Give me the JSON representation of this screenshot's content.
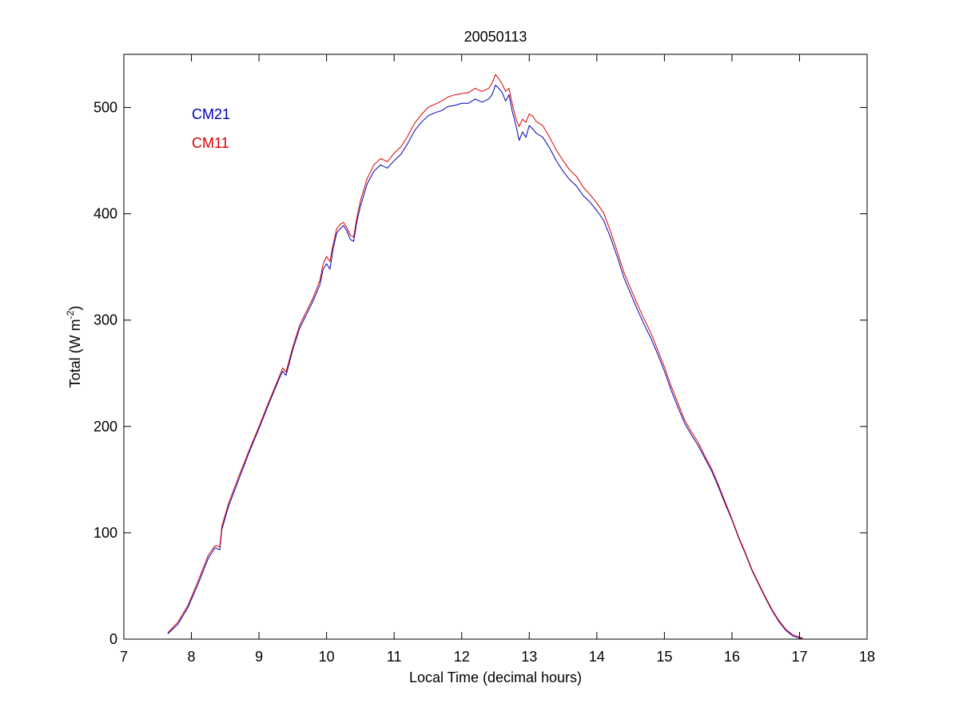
{
  "chart_data": {
    "type": "line",
    "title": "20050113",
    "xlabel": "Local Time (decimal hours)",
    "ylabel": "Total (W m",
    "ylabel_sup": "-2",
    "ylabel_end": ")",
    "xlim": [
      7,
      18
    ],
    "ylim": [
      0,
      550
    ],
    "xticks": [
      7,
      8,
      9,
      10,
      11,
      12,
      13,
      14,
      15,
      16,
      17,
      18
    ],
    "yticks": [
      0,
      100,
      200,
      300,
      400,
      500
    ],
    "grid": false,
    "legend_position": "top-left",
    "series": [
      {
        "name": "CM21",
        "color": "#0000b4",
        "x": [
          7.65,
          7.8,
          7.95,
          8.1,
          8.25,
          8.35,
          8.42,
          8.45,
          8.55,
          8.7,
          8.85,
          9.0,
          9.15,
          9.3,
          9.35,
          9.4,
          9.5,
          9.6,
          9.7,
          9.8,
          9.9,
          9.95,
          10.0,
          10.05,
          10.08,
          10.1,
          10.15,
          10.2,
          10.25,
          10.3,
          10.35,
          10.4,
          10.45,
          10.5,
          10.6,
          10.7,
          10.8,
          10.9,
          11.0,
          11.1,
          11.2,
          11.3,
          11.4,
          11.5,
          11.6,
          11.7,
          11.8,
          11.9,
          12.0,
          12.1,
          12.2,
          12.3,
          12.4,
          12.45,
          12.5,
          12.55,
          12.6,
          12.65,
          12.7,
          12.75,
          12.8,
          12.85,
          12.9,
          12.95,
          13.0,
          13.05,
          13.1,
          13.2,
          13.3,
          13.4,
          13.5,
          13.6,
          13.7,
          13.8,
          13.9,
          14.0,
          14.1,
          14.2,
          14.3,
          14.4,
          14.5,
          14.6,
          14.7,
          14.8,
          14.9,
          15.0,
          15.1,
          15.2,
          15.3,
          15.4,
          15.5,
          15.6,
          15.7,
          15.8,
          15.9,
          16.0,
          16.1,
          16.2,
          16.3,
          16.4,
          16.5,
          16.6,
          16.7,
          16.8,
          16.9,
          17.0,
          17.05
        ],
        "y": [
          5,
          14,
          30,
          52,
          76,
          86,
          84,
          103,
          125,
          150,
          175,
          198,
          222,
          245,
          252,
          248,
          272,
          292,
          305,
          318,
          333,
          348,
          353,
          348,
          360,
          368,
          382,
          386,
          389,
          384,
          376,
          374,
          393,
          407,
          428,
          440,
          446,
          443,
          450,
          456,
          466,
          478,
          486,
          492,
          495,
          497,
          501,
          502,
          504,
          504,
          508,
          505,
          508,
          512,
          521,
          518,
          514,
          506,
          512,
          496,
          484,
          469,
          477,
          472,
          483,
          480,
          476,
          472,
          462,
          450,
          440,
          432,
          426,
          417,
          411,
          403,
          394,
          378,
          360,
          340,
          325,
          310,
          296,
          283,
          268,
          252,
          234,
          218,
          203,
          192,
          182,
          170,
          158,
          143,
          127,
          112,
          95,
          80,
          64,
          51,
          38,
          26,
          16,
          8,
          3,
          1,
          0
        ]
      },
      {
        "name": "CM11",
        "color": "#dc0000",
        "x": [
          7.65,
          7.8,
          7.95,
          8.1,
          8.25,
          8.35,
          8.42,
          8.45,
          8.55,
          8.7,
          8.85,
          9.0,
          9.15,
          9.3,
          9.35,
          9.4,
          9.5,
          9.6,
          9.7,
          9.8,
          9.9,
          9.95,
          10.0,
          10.05,
          10.08,
          10.1,
          10.15,
          10.2,
          10.25,
          10.3,
          10.35,
          10.4,
          10.45,
          10.5,
          10.6,
          10.7,
          10.8,
          10.9,
          11.0,
          11.1,
          11.2,
          11.3,
          11.4,
          11.5,
          11.6,
          11.7,
          11.8,
          11.9,
          12.0,
          12.1,
          12.2,
          12.3,
          12.4,
          12.45,
          12.5,
          12.55,
          12.6,
          12.65,
          12.7,
          12.75,
          12.8,
          12.85,
          12.9,
          12.95,
          13.0,
          13.05,
          13.1,
          13.2,
          13.3,
          13.4,
          13.5,
          13.6,
          13.7,
          13.8,
          13.9,
          14.0,
          14.1,
          14.2,
          14.3,
          14.4,
          14.5,
          14.6,
          14.7,
          14.8,
          14.9,
          15.0,
          15.1,
          15.2,
          15.3,
          15.4,
          15.5,
          15.6,
          15.7,
          15.8,
          15.9,
          16.0,
          16.1,
          16.2,
          16.3,
          16.4,
          16.5,
          16.6,
          16.7,
          16.8,
          16.9,
          17.0,
          17.05
        ],
        "y": [
          6,
          16,
          32,
          55,
          79,
          88,
          87,
          106,
          128,
          153,
          177,
          200,
          224,
          247,
          255,
          251,
          275,
          295,
          308,
          321,
          337,
          353,
          360,
          355,
          366,
          372,
          386,
          390,
          392,
          387,
          380,
          378,
          397,
          412,
          433,
          446,
          452,
          449,
          457,
          463,
          473,
          485,
          493,
          500,
          503,
          506,
          510,
          512,
          513,
          514,
          518,
          515,
          518,
          523,
          531,
          527,
          522,
          515,
          518,
          503,
          490,
          482,
          489,
          486,
          494,
          492,
          487,
          483,
          472,
          460,
          450,
          441,
          435,
          425,
          418,
          410,
          401,
          384,
          365,
          345,
          330,
          315,
          301,
          288,
          272,
          256,
          238,
          222,
          206,
          195,
          185,
          172,
          160,
          145,
          129,
          113,
          96,
          81,
          65,
          52,
          39,
          27,
          17,
          9,
          4,
          2,
          1
        ]
      }
    ]
  }
}
